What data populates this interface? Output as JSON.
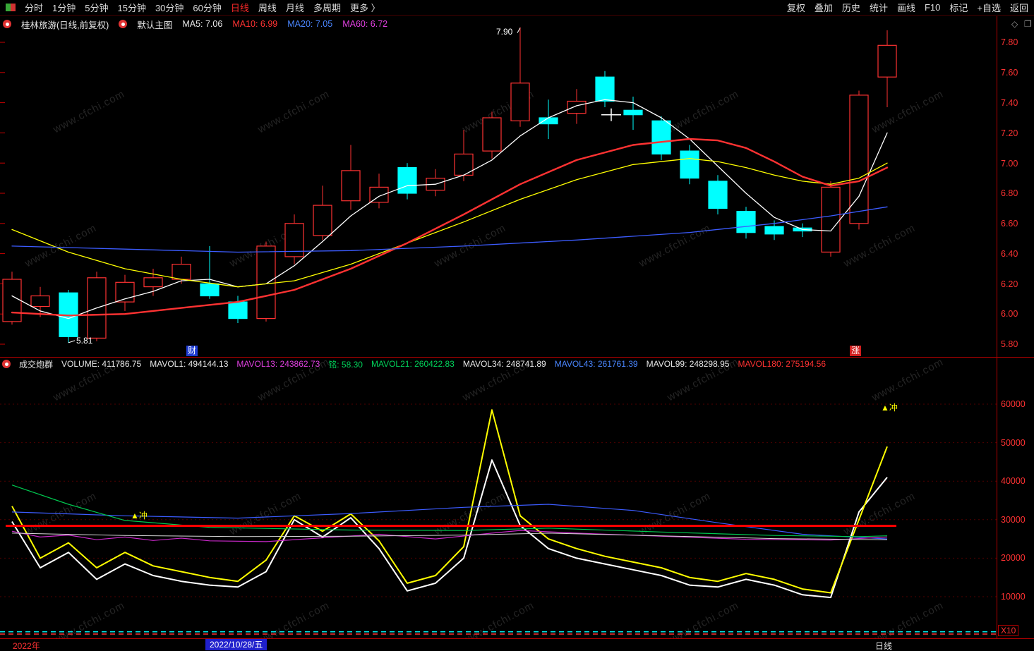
{
  "watermark_text": "www.cfchi.com",
  "top_menu": {
    "left_items": [
      "分时",
      "1分钟",
      "5分钟",
      "15分钟",
      "30分钟",
      "60分钟",
      "日线",
      "周线",
      "月线",
      "多周期",
      "更多 〉"
    ],
    "active_item": "日线",
    "right_items": [
      "复权",
      "叠加",
      "历史",
      "统计",
      "画线",
      "F10",
      "标记",
      "+自选",
      "返回"
    ]
  },
  "info_bar": {
    "stock_title": "桂林旅游(日线,前复权)",
    "main_chart_label": "默认主图",
    "ma_items": [
      {
        "label": "MA5: 7.06",
        "color": "#e8e8e8"
      },
      {
        "label": "MA10: 6.99",
        "color": "#ff3232"
      },
      {
        "label": "MA20: 7.05",
        "color": "#4a86ff"
      },
      {
        "label": "MA60: 6.72",
        "color": "#e040e0"
      }
    ],
    "right_icons": [
      "◇",
      "❐"
    ]
  },
  "main_axis_labels": [
    "7.80",
    "7.60",
    "7.40",
    "7.20",
    "7.00",
    "6.80",
    "6.60",
    "6.40",
    "6.20",
    "6.00",
    "5.80"
  ],
  "volume_axis_labels": [
    "60000",
    "50000",
    "40000",
    "30000",
    "20000",
    "10000"
  ],
  "x10_label": "X10",
  "panel": {
    "title": "成交炮群",
    "items": [
      {
        "label": "VOLUME: 411786.75",
        "color": "#e8e8e8"
      },
      {
        "label": "MAVOL1: 494144.13",
        "color": "#e8e8e8"
      },
      {
        "label": "MAVOL13: 243862.73",
        "color": "#e040e0"
      },
      {
        "label": "铭: 58.30",
        "color": "#00d25a"
      },
      {
        "label": "MAVOL21: 260422.83",
        "color": "#00d25a"
      },
      {
        "label": "MAVOL34: 248741.89",
        "color": "#e8e8e8"
      },
      {
        "label": "MAVOL43: 261761.39",
        "color": "#4a86ff"
      },
      {
        "label": "MAVOL99: 248298.95",
        "color": "#e8e8e8"
      },
      {
        "label": "MAVOL180: 275194.56",
        "color": "#ff3232"
      }
    ]
  },
  "annotations": {
    "high_label": "7.90",
    "low_label": "5.81",
    "badge_left": "财",
    "badge_right": "涨",
    "marker_left": "▲冲",
    "marker_right": "▲冲"
  },
  "bottom_bar": {
    "year": "2022年",
    "date": "2022/10/28/五",
    "period": "日线"
  },
  "chart_data": {
    "type": "candlestick",
    "main_chart": {
      "title": "桂林旅游 日线 前复权",
      "ylim": [
        5.8,
        7.8
      ],
      "y_ticks": [
        7.8,
        7.6,
        7.4,
        7.2,
        7.0,
        6.8,
        6.6,
        6.4,
        6.2,
        6.0,
        5.8
      ],
      "high_point": {
        "index": 18,
        "price": 7.9
      },
      "low_point": {
        "index": 2,
        "price": 5.81
      },
      "cross_marker": {
        "index": 21,
        "price": 7.32
      },
      "candles_ohlc": [
        [
          5.95,
          6.28,
          5.93,
          6.23
        ],
        [
          6.05,
          6.18,
          5.98,
          6.12
        ],
        [
          6.14,
          6.16,
          5.81,
          5.85
        ],
        [
          5.84,
          6.28,
          5.82,
          6.24
        ],
        [
          6.08,
          6.26,
          6.02,
          6.21
        ],
        [
          6.18,
          6.3,
          6.12,
          6.24
        ],
        [
          6.23,
          6.38,
          6.2,
          6.33
        ],
        [
          6.2,
          6.45,
          6.1,
          6.12
        ],
        [
          6.08,
          6.12,
          5.94,
          5.97
        ],
        [
          5.97,
          6.48,
          5.95,
          6.45
        ],
        [
          6.38,
          6.66,
          6.33,
          6.6
        ],
        [
          6.52,
          6.85,
          6.49,
          6.72
        ],
        [
          6.75,
          7.12,
          6.69,
          6.95
        ],
        [
          6.74,
          6.93,
          6.7,
          6.84
        ],
        [
          6.97,
          7.0,
          6.76,
          6.8
        ],
        [
          6.82,
          6.96,
          6.78,
          6.9
        ],
        [
          6.92,
          7.22,
          6.88,
          7.06
        ],
        [
          7.08,
          7.34,
          7.03,
          7.3
        ],
        [
          7.28,
          7.9,
          7.24,
          7.53
        ],
        [
          7.3,
          7.42,
          7.16,
          7.26
        ],
        [
          7.33,
          7.49,
          7.26,
          7.41
        ],
        [
          7.57,
          7.61,
          7.37,
          7.41
        ],
        [
          7.35,
          7.44,
          7.22,
          7.32
        ],
        [
          7.28,
          7.31,
          7.02,
          7.06
        ],
        [
          7.08,
          7.12,
          6.86,
          6.9
        ],
        [
          6.88,
          6.92,
          6.66,
          6.7
        ],
        [
          6.68,
          6.71,
          6.5,
          6.54
        ],
        [
          6.58,
          6.62,
          6.49,
          6.53
        ],
        [
          6.57,
          6.6,
          6.51,
          6.55
        ],
        [
          6.41,
          6.88,
          6.38,
          6.84
        ],
        [
          6.6,
          7.48,
          6.56,
          7.45
        ],
        [
          7.57,
          7.88,
          7.37,
          7.78
        ]
      ],
      "ma_lines": [
        {
          "name": "MA5",
          "value": 7.06,
          "color": "#ffffff",
          "width": 1.3,
          "points": [
            [
              0,
              6.12
            ],
            [
              1,
              6.02
            ],
            [
              2,
              5.97
            ],
            [
              3,
              6.04
            ],
            [
              4,
              6.1
            ],
            [
              5,
              6.15
            ],
            [
              6,
              6.22
            ],
            [
              7,
              6.23
            ],
            [
              8,
              6.18
            ],
            [
              9,
              6.2
            ],
            [
              10,
              6.32
            ],
            [
              11,
              6.48
            ],
            [
              12,
              6.65
            ],
            [
              13,
              6.78
            ],
            [
              14,
              6.85
            ],
            [
              15,
              6.86
            ],
            [
              16,
              6.92
            ],
            [
              17,
              7.02
            ],
            [
              18,
              7.18
            ],
            [
              19,
              7.3
            ],
            [
              20,
              7.38
            ],
            [
              21,
              7.42
            ],
            [
              22,
              7.4
            ],
            [
              23,
              7.3
            ],
            [
              24,
              7.16
            ],
            [
              25,
              6.98
            ],
            [
              26,
              6.8
            ],
            [
              27,
              6.64
            ],
            [
              28,
              6.56
            ],
            [
              29,
              6.55
            ],
            [
              30,
              6.78
            ],
            [
              31,
              7.2
            ]
          ]
        },
        {
          "name": "MA10",
          "value": 6.99,
          "color": "#ffff00",
          "width": 1.3,
          "points": [
            [
              0,
              6.56
            ],
            [
              2,
              6.41
            ],
            [
              4,
              6.3
            ],
            [
              6,
              6.23
            ],
            [
              8,
              6.18
            ],
            [
              10,
              6.22
            ],
            [
              12,
              6.33
            ],
            [
              14,
              6.47
            ],
            [
              16,
              6.61
            ],
            [
              18,
              6.76
            ],
            [
              20,
              6.89
            ],
            [
              22,
              6.99
            ],
            [
              24,
              7.03
            ],
            [
              25,
              7.01
            ],
            [
              26,
              6.97
            ],
            [
              27,
              6.92
            ],
            [
              28,
              6.88
            ],
            [
              29,
              6.86
            ],
            [
              30,
              6.9
            ],
            [
              31,
              7.0
            ]
          ]
        },
        {
          "name": "MA20",
          "value": 7.05,
          "color": "#ff3232",
          "width": 2.4,
          "points": [
            [
              0,
              6.01
            ],
            [
              2,
              5.99
            ],
            [
              4,
              6.0
            ],
            [
              6,
              6.04
            ],
            [
              8,
              6.08
            ],
            [
              10,
              6.16
            ],
            [
              12,
              6.3
            ],
            [
              14,
              6.47
            ],
            [
              16,
              6.66
            ],
            [
              18,
              6.86
            ],
            [
              20,
              7.02
            ],
            [
              22,
              7.12
            ],
            [
              24,
              7.16
            ],
            [
              25,
              7.15
            ],
            [
              26,
              7.1
            ],
            [
              27,
              7.01
            ],
            [
              28,
              6.91
            ],
            [
              29,
              6.85
            ],
            [
              30,
              6.88
            ],
            [
              31,
              6.97
            ]
          ]
        },
        {
          "name": "MA60",
          "value": 6.72,
          "color": "#3c5cff",
          "width": 1.3,
          "points": [
            [
              0,
              6.45
            ],
            [
              4,
              6.43
            ],
            [
              8,
              6.41
            ],
            [
              12,
              6.42
            ],
            [
              16,
              6.45
            ],
            [
              20,
              6.49
            ],
            [
              24,
              6.54
            ],
            [
              27,
              6.6
            ],
            [
              29,
              6.65
            ],
            [
              31,
              6.71
            ]
          ]
        }
      ]
    },
    "volume_chart": {
      "ylim": [
        0,
        65000
      ],
      "y_ticks": [
        60000,
        50000,
        40000,
        30000,
        20000,
        10000
      ],
      "scale_note": "X10",
      "series": [
        {
          "name": "VOLUME",
          "last": 411786.75,
          "color": "#ffffff",
          "width": 2,
          "values": [
            29500,
            17500,
            21500,
            14500,
            18500,
            15500,
            14000,
            13000,
            12500,
            16500,
            30000,
            25500,
            30500,
            22500,
            11500,
            13500,
            20000,
            45500,
            28500,
            22500,
            20000,
            18500,
            17000,
            15500,
            13000,
            12500,
            14500,
            13000,
            10500,
            9800,
            32000,
            41000
          ]
        },
        {
          "name": "MAVOL1",
          "last": 494144.13,
          "color": "#ffff00",
          "width": 2,
          "values": [
            33500,
            20000,
            24000,
            17500,
            21500,
            18000,
            16500,
            15000,
            14000,
            19500,
            31000,
            27000,
            31500,
            24500,
            13500,
            15500,
            23000,
            58500,
            31000,
            25000,
            22500,
            20500,
            19000,
            17500,
            15000,
            14000,
            16000,
            14500,
            12000,
            11000,
            30000,
            49000
          ]
        },
        {
          "name": "MAVOL43",
          "last": 261761.39,
          "color": "#3c5cff",
          "width": 1.2,
          "points": [
            [
              0,
              32000
            ],
            [
              4,
              31000
            ],
            [
              8,
              30400
            ],
            [
              12,
              31600
            ],
            [
              16,
              33200
            ],
            [
              19,
              34000
            ],
            [
              22,
              32400
            ],
            [
              25,
              29200
            ],
            [
              28,
              26200
            ],
            [
              31,
              25000
            ]
          ]
        },
        {
          "name": "MAVOL21",
          "last": 260422.83,
          "color": "#00c850",
          "width": 1.2,
          "points": [
            [
              0,
              39000
            ],
            [
              2,
              34000
            ],
            [
              4,
              29800
            ],
            [
              7,
              28000
            ],
            [
              12,
              27300
            ],
            [
              16,
              27200
            ],
            [
              19,
              27800
            ],
            [
              23,
              26800
            ],
            [
              27,
              25900
            ],
            [
              30,
              25600
            ],
            [
              31,
              25800
            ]
          ]
        },
        {
          "name": "MAVOL13",
          "last": 243862.73,
          "color": "#c828c8",
          "width": 1.2,
          "points": [
            [
              0,
              27000
            ],
            [
              1,
              25500
            ],
            [
              2,
              26000
            ],
            [
              3,
              24800
            ],
            [
              4,
              25500
            ],
            [
              5,
              24600
            ],
            [
              6,
              25200
            ],
            [
              7,
              24500
            ],
            [
              9,
              24300
            ],
            [
              11,
              25300
            ],
            [
              13,
              26200
            ],
            [
              15,
              25000
            ],
            [
              17,
              26500
            ],
            [
              18,
              27200
            ],
            [
              20,
              26500
            ],
            [
              23,
              25700
            ],
            [
              26,
              24900
            ],
            [
              29,
              24700
            ],
            [
              31,
              25500
            ]
          ]
        },
        {
          "name": "MAVOL99",
          "last": 248298.95,
          "color": "#d8d8d8",
          "width": 1,
          "points": [
            [
              0,
              26500
            ],
            [
              4,
              25900
            ],
            [
              8,
              25600
            ],
            [
              12,
              25700
            ],
            [
              16,
              26000
            ],
            [
              19,
              26500
            ],
            [
              23,
              25800
            ],
            [
              27,
              25100
            ],
            [
              31,
              24800
            ]
          ]
        },
        {
          "name": "MAVOL180",
          "last": 275194.56,
          "color": "#ff0000",
          "width": 3,
          "flat_value": 28400
        }
      ],
      "baseline_dashed": [
        {
          "color": "#00e5e5",
          "value": 900
        },
        {
          "color": "#ff3232",
          "value": 300
        }
      ]
    }
  }
}
